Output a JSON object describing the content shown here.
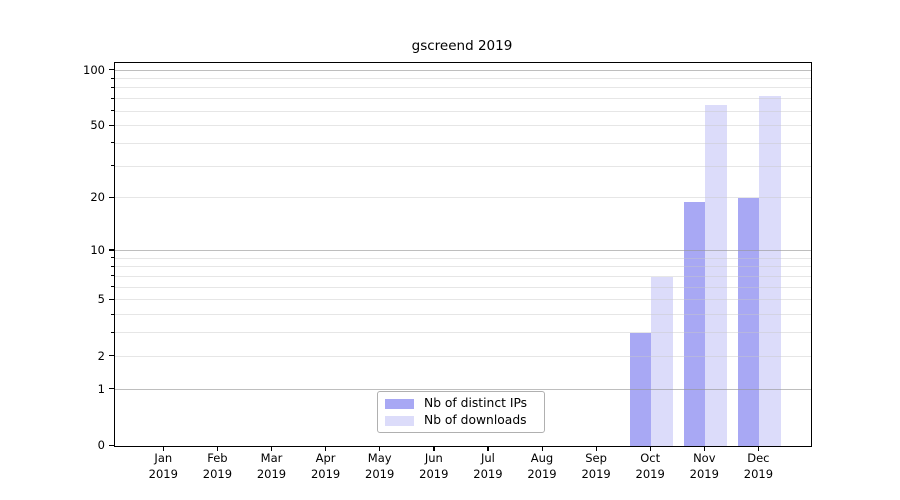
{
  "chart_data": {
    "type": "bar",
    "title": "gscreend 2019",
    "categories": [
      "Jan 2019",
      "Feb 2019",
      "Mar 2019",
      "Apr 2019",
      "May 2019",
      "Jun 2019",
      "Jul 2019",
      "Aug 2019",
      "Sep 2019",
      "Oct 2019",
      "Nov 2019",
      "Dec 2019"
    ],
    "series": [
      {
        "name": "Nb of distinct IPs",
        "color": "#a8a8f4",
        "values": [
          0,
          0,
          0,
          0,
          0,
          0,
          0,
          0,
          0,
          3,
          19,
          20
        ]
      },
      {
        "name": "Nb of downloads",
        "color": "#dcdcfa",
        "values": [
          0,
          0,
          0,
          0,
          0,
          0,
          0,
          0,
          0,
          7,
          65,
          73
        ]
      }
    ],
    "y_scale": "log10(value+1)",
    "y_ticks": [
      0,
      1,
      2,
      5,
      10,
      20,
      50,
      100
    ],
    "y_minor_ticks": [
      3,
      4,
      6,
      7,
      8,
      9,
      30,
      40,
      60,
      70,
      80,
      90
    ],
    "ylim": [
      0,
      110
    ],
    "grid": "horizontal",
    "legend_position": "bottom-center"
  }
}
